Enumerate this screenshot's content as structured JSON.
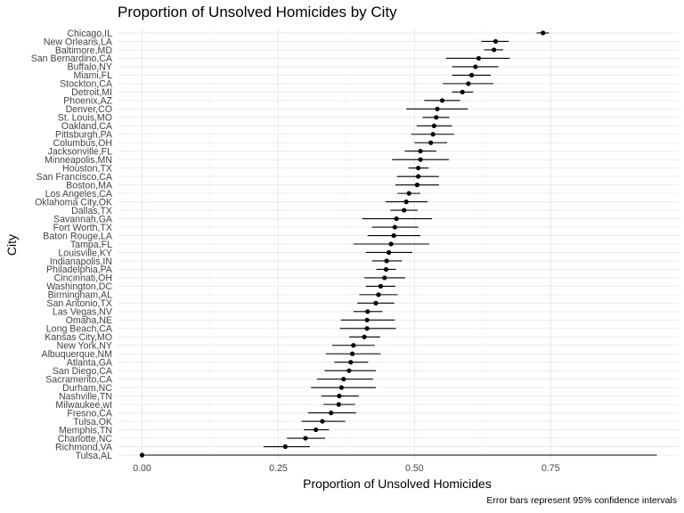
{
  "chart_data": {
    "type": "scatter",
    "title": "Proportion of Unsolved Homicides by City",
    "xlabel": "Proportion of Unsolved Homicides",
    "ylabel": "City",
    "caption": "Error bars represent 95% confidence intervals",
    "xlim": [
      -0.045,
      0.985
    ],
    "x_ticks": [
      0.0,
      0.25,
      0.5,
      0.75
    ],
    "x_tick_labels": [
      "0.00",
      "0.25",
      "0.50",
      "0.75"
    ],
    "grid": true,
    "series": [
      {
        "points": [
          {
            "city": "Chicago,IL",
            "estimate": 0.736,
            "lower": 0.724,
            "upper": 0.747
          },
          {
            "city": "New Orleans,LA",
            "estimate": 0.649,
            "lower": 0.623,
            "upper": 0.673
          },
          {
            "city": "Baltimore,MD",
            "estimate": 0.646,
            "lower": 0.628,
            "upper": 0.663
          },
          {
            "city": "San Bernardino,CA",
            "estimate": 0.618,
            "lower": 0.558,
            "upper": 0.675
          },
          {
            "city": "Buffalo,NY",
            "estimate": 0.612,
            "lower": 0.569,
            "upper": 0.654
          },
          {
            "city": "Miami,FL",
            "estimate": 0.605,
            "lower": 0.569,
            "upper": 0.64
          },
          {
            "city": "Stockton,CA",
            "estimate": 0.599,
            "lower": 0.552,
            "upper": 0.645
          },
          {
            "city": "Detroit,MI",
            "estimate": 0.588,
            "lower": 0.569,
            "upper": 0.608
          },
          {
            "city": "Phoenix,AZ",
            "estimate": 0.551,
            "lower": 0.518,
            "upper": 0.584
          },
          {
            "city": "Denver,CO",
            "estimate": 0.542,
            "lower": 0.485,
            "upper": 0.598
          },
          {
            "city": "St. Louis,MO",
            "estimate": 0.54,
            "lower": 0.515,
            "upper": 0.564
          },
          {
            "city": "Oakland,CA",
            "estimate": 0.536,
            "lower": 0.504,
            "upper": 0.569
          },
          {
            "city": "Pittsburgh,PA",
            "estimate": 0.534,
            "lower": 0.494,
            "upper": 0.573
          },
          {
            "city": "Columbus,OH",
            "estimate": 0.53,
            "lower": 0.5,
            "upper": 0.56
          },
          {
            "city": "Jacksonville,FL",
            "estimate": 0.511,
            "lower": 0.482,
            "upper": 0.54
          },
          {
            "city": "Minneapolis,MN",
            "estimate": 0.511,
            "lower": 0.459,
            "upper": 0.563
          },
          {
            "city": "Houston,TX",
            "estimate": 0.507,
            "lower": 0.489,
            "upper": 0.526
          },
          {
            "city": "San Francisco,CA",
            "estimate": 0.507,
            "lower": 0.468,
            "upper": 0.545
          },
          {
            "city": "Boston,MA",
            "estimate": 0.505,
            "lower": 0.465,
            "upper": 0.545
          },
          {
            "city": "Los Angeles,CA",
            "estimate": 0.49,
            "lower": 0.469,
            "upper": 0.511
          },
          {
            "city": "Oklahoma City,OK",
            "estimate": 0.485,
            "lower": 0.447,
            "upper": 0.524
          },
          {
            "city": "Dallas,TX",
            "estimate": 0.481,
            "lower": 0.456,
            "upper": 0.506
          },
          {
            "city": "Savannah,GA",
            "estimate": 0.467,
            "lower": 0.404,
            "upper": 0.532
          },
          {
            "city": "Fort Worth,TX",
            "estimate": 0.464,
            "lower": 0.422,
            "upper": 0.507
          },
          {
            "city": "Baton Rouge,LA",
            "estimate": 0.462,
            "lower": 0.414,
            "upper": 0.511
          },
          {
            "city": "Tampa,FL",
            "estimate": 0.457,
            "lower": 0.388,
            "upper": 0.527
          },
          {
            "city": "Louisville,KY",
            "estimate": 0.453,
            "lower": 0.411,
            "upper": 0.496
          },
          {
            "city": "Indianapolis,IN",
            "estimate": 0.449,
            "lower": 0.422,
            "upper": 0.477
          },
          {
            "city": "Philadelphia,PA",
            "estimate": 0.448,
            "lower": 0.43,
            "upper": 0.466
          },
          {
            "city": "Cincinnati,OH",
            "estimate": 0.445,
            "lower": 0.408,
            "upper": 0.483
          },
          {
            "city": "Washington,DC",
            "estimate": 0.438,
            "lower": 0.411,
            "upper": 0.465
          },
          {
            "city": "Birmingham,AL",
            "estimate": 0.434,
            "lower": 0.399,
            "upper": 0.469
          },
          {
            "city": "San Antonio,TX",
            "estimate": 0.429,
            "lower": 0.395,
            "upper": 0.463
          },
          {
            "city": "Las Vegas,NV",
            "estimate": 0.414,
            "lower": 0.388,
            "upper": 0.441
          },
          {
            "city": "Omaha,NE",
            "estimate": 0.413,
            "lower": 0.365,
            "upper": 0.464
          },
          {
            "city": "Long Beach,CA",
            "estimate": 0.413,
            "lower": 0.363,
            "upper": 0.466
          },
          {
            "city": "Kansas City,MO",
            "estimate": 0.408,
            "lower": 0.38,
            "upper": 0.437
          },
          {
            "city": "New York,NY",
            "estimate": 0.388,
            "lower": 0.349,
            "upper": 0.427
          },
          {
            "city": "Albuquerque,NM",
            "estimate": 0.386,
            "lower": 0.337,
            "upper": 0.438
          },
          {
            "city": "Atlanta,GA",
            "estimate": 0.383,
            "lower": 0.353,
            "upper": 0.415
          },
          {
            "city": "San Diego,CA",
            "estimate": 0.38,
            "lower": 0.335,
            "upper": 0.429
          },
          {
            "city": "Sacramento,CA",
            "estimate": 0.37,
            "lower": 0.321,
            "upper": 0.424
          },
          {
            "city": "Durham,NC",
            "estimate": 0.366,
            "lower": 0.31,
            "upper": 0.429
          },
          {
            "city": "Nashville,TN",
            "estimate": 0.362,
            "lower": 0.329,
            "upper": 0.398
          },
          {
            "city": "Milwaukee,wI",
            "estimate": 0.361,
            "lower": 0.333,
            "upper": 0.391
          },
          {
            "city": "Fresno,CA",
            "estimate": 0.347,
            "lower": 0.305,
            "upper": 0.393
          },
          {
            "city": "Tulsa,OK",
            "estimate": 0.331,
            "lower": 0.293,
            "upper": 0.373
          },
          {
            "city": "Memphis,TN",
            "estimate": 0.319,
            "lower": 0.297,
            "upper": 0.343
          },
          {
            "city": "Charlotte,NC",
            "estimate": 0.3,
            "lower": 0.266,
            "upper": 0.336
          },
          {
            "city": "Richmond,VA",
            "estimate": 0.263,
            "lower": 0.223,
            "upper": 0.308
          },
          {
            "city": "Tulsa,AL",
            "estimate": 0.0,
            "lower": 0.0,
            "upper": 0.945
          }
        ]
      }
    ],
    "colors": {
      "point": "#000000",
      "errorbar": "#000000",
      "grid_major": "#ebebeb",
      "grid_minor": "#f5f5f5",
      "tick_text": "#444444"
    }
  }
}
